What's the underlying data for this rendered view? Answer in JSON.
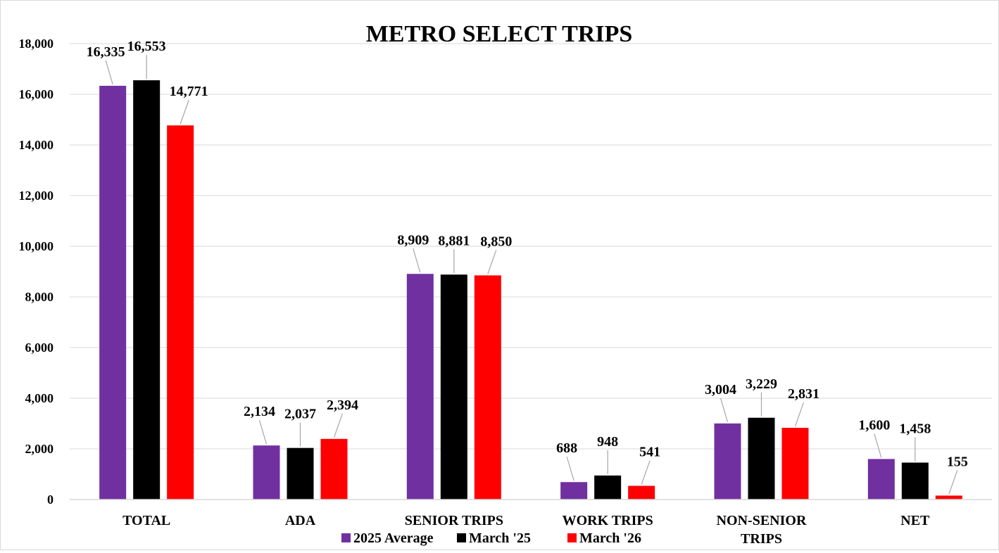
{
  "chart_data": {
    "type": "bar",
    "title": "METRO SELECT TRIPS",
    "categories": [
      "TOTAL",
      "ADA",
      "SENIOR TRIPS",
      "WORK TRIPS",
      "NON-SENIOR TRIPS",
      "NET"
    ],
    "category_lines": [
      [
        "TOTAL"
      ],
      [
        "ADA"
      ],
      [
        "SENIOR TRIPS"
      ],
      [
        "WORK TRIPS"
      ],
      [
        "NON-SENIOR",
        "TRIPS"
      ],
      [
        "NET"
      ]
    ],
    "series": [
      {
        "name": "2025 Average",
        "color": "#7030a0",
        "values": [
          16335,
          2134,
          8909,
          688,
          3004,
          1600
        ]
      },
      {
        "name": "March '25",
        "color": "#000000",
        "values": [
          16553,
          2037,
          8881,
          948,
          3229,
          1458
        ]
      },
      {
        "name": "March '26",
        "color": "#ff0000",
        "values": [
          14771,
          2394,
          8850,
          541,
          2831,
          155
        ]
      }
    ],
    "data_labels": [
      [
        "16,335",
        "2,134",
        "8,909",
        "688",
        "3,004",
        "1,600"
      ],
      [
        "16,553",
        "2,037",
        "8,881",
        "948",
        "3,229",
        "1,458"
      ],
      [
        "14,771",
        "2,394",
        "8,850",
        "541",
        "2,831",
        "155"
      ]
    ],
    "yticks": [
      "0",
      "2,000",
      "4,000",
      "6,000",
      "8,000",
      "10,000",
      "12,000",
      "14,000",
      "16,000",
      "18,000"
    ],
    "ylim": [
      0,
      18000
    ],
    "xlabel": "",
    "ylabel": "",
    "grid": true,
    "legend_position": "bottom"
  }
}
